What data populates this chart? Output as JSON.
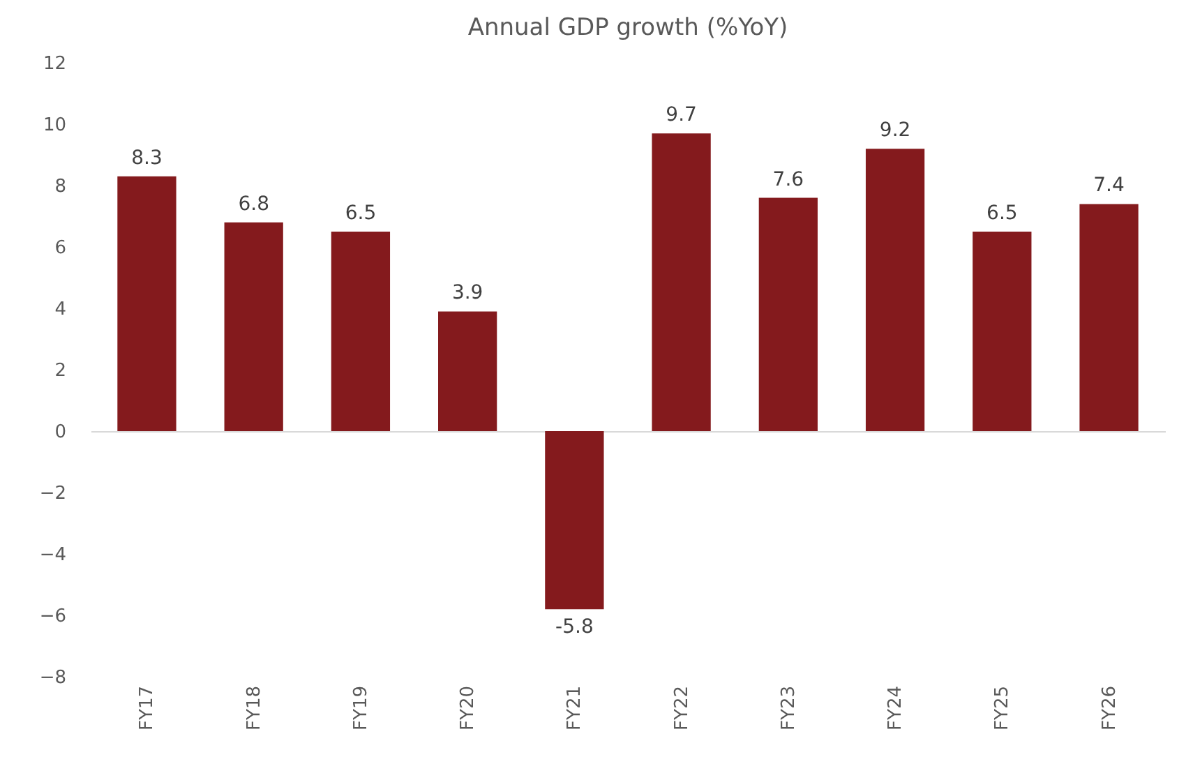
{
  "chart_data": {
    "type": "bar",
    "title": "Annual GDP growth (%YoY)",
    "categories": [
      "FY17",
      "FY18",
      "FY19",
      "FY20",
      "FY21",
      "FY22",
      "FY23",
      "FY24",
      "FY25",
      "FY26"
    ],
    "values": [
      8.3,
      6.8,
      6.5,
      3.9,
      -5.8,
      9.7,
      7.6,
      9.2,
      6.5,
      7.4
    ],
    "color": "#841a1d",
    "ylim": [
      -8,
      12
    ],
    "yticks": [
      -8,
      -6,
      -4,
      -2,
      0,
      2,
      4,
      6,
      8,
      10,
      12
    ],
    "data_labels": true
  }
}
